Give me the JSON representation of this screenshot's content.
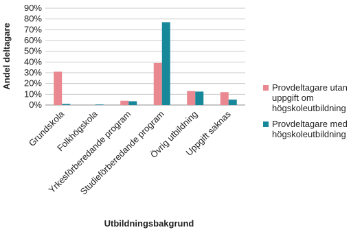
{
  "chart_data": {
    "type": "bar",
    "ylabel": "Andel deltagare",
    "xlabel": "Utbildningsbakgrund",
    "ylim": [
      0,
      90
    ],
    "yticks": [
      "0%",
      "10%",
      "20%",
      "30%",
      "40%",
      "50%",
      "60%",
      "70%",
      "80%",
      "90%"
    ],
    "grid": true,
    "legend_position": "right",
    "categories": [
      "Grundskola",
      "Folkhögskola",
      "Yrkesförberedande program",
      "Studieförberedande program",
      "Övrig utbildning",
      "Uppgift saknas"
    ],
    "series": [
      {
        "name": "Provdeltagare utan uppgift om högskoleutbildning",
        "color": "#e98890",
        "values": [
          31,
          0,
          4,
          39,
          13,
          12
        ]
      },
      {
        "name": "Provdeltagare med högskoleutbildning",
        "color": "#17879a",
        "values": [
          1,
          0.5,
          3.5,
          77,
          12.5,
          5
        ]
      }
    ]
  }
}
